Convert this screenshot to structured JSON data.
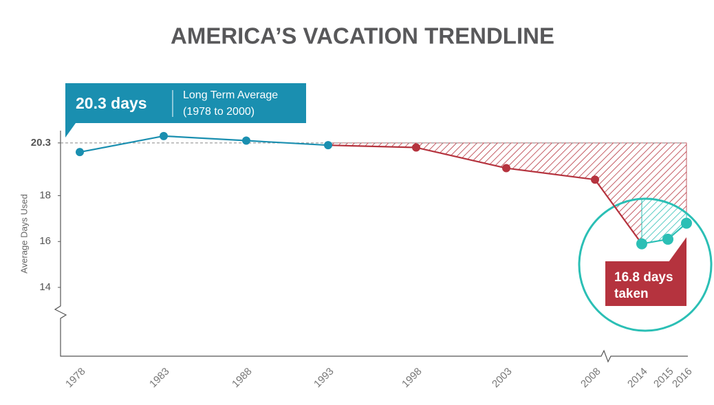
{
  "chart_data": {
    "type": "line",
    "title": "AMERICA’S VACATION TRENDLINE",
    "y_label": "Average Days Used",
    "categories": [
      "1978",
      "1983",
      "1988",
      "1993",
      "1998",
      "2003",
      "2008",
      "2014",
      "2015",
      "2016"
    ],
    "values": [
      19.9,
      20.6,
      20.4,
      20.2,
      20.1,
      19.2,
      18.7,
      15.9,
      16.1,
      16.8
    ],
    "colors": [
      "#1a8fb0",
      "#1a8fb0",
      "#1a8fb0",
      "#1a8fb0",
      "#b5333e",
      "#b5333e",
      "#b5333e",
      "#2bbfb5",
      "#2bbfb5",
      "#2bbfb5"
    ],
    "line_colors": [
      "#1a8fb0",
      "#1a8fb0",
      "#1a8fb0",
      "#b5333e",
      "#b5333e",
      "#b5333e",
      "#b5333e",
      "#2bbfb5",
      "#2bbfb5"
    ],
    "ylim": [
      11,
      21
    ],
    "yticks": [
      14,
      16,
      18,
      20.3
    ],
    "average": {
      "value": 20.3,
      "label": "20.3 days",
      "text": [
        "Long Term Average",
        "(1978 to 2000)"
      ]
    },
    "callout": [
      "16.8 days",
      "taken"
    ]
  }
}
